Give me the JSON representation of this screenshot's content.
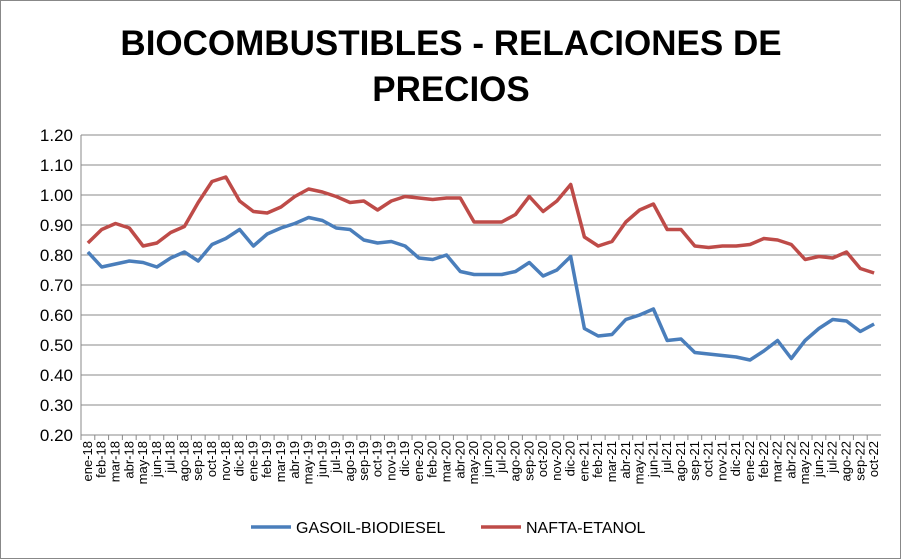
{
  "chart_data": {
    "type": "line",
    "title": "BIOCOMBUSTIBLES - RELACIONES DE PRECIOS",
    "title_lines": [
      "BIOCOMBUSTIBLES - RELACIONES DE",
      "PRECIOS"
    ],
    "xlabel": "",
    "ylabel": "",
    "ylim": [
      0.2,
      1.2
    ],
    "yticks": [
      "0.20",
      "0.30",
      "0.40",
      "0.50",
      "0.60",
      "0.70",
      "0.80",
      "0.90",
      "1.00",
      "1.10",
      "1.20"
    ],
    "grid": true,
    "legend": "bottom",
    "categories": [
      "ene-18",
      "feb-18",
      "mar-18",
      "abr-18",
      "may-18",
      "jun-18",
      "jul-18",
      "ago-18",
      "sep-18",
      "oct-18",
      "nov-18",
      "dic-18",
      "ene-19",
      "feb-19",
      "mar-19",
      "abr-19",
      "may-19",
      "jun-19",
      "jul-19",
      "ago-19",
      "sep-19",
      "oct-19",
      "nov-19",
      "dic-19",
      "ene-20",
      "feb-20",
      "mar-20",
      "abr-20",
      "may-20",
      "jun-20",
      "jul-20",
      "ago-20",
      "sep-20",
      "oct-20",
      "nov-20",
      "dic-20",
      "ene-21",
      "feb-21",
      "mar-21",
      "abr-21",
      "may-21",
      "jun-21",
      "jul-21",
      "ago-21",
      "sep-21",
      "oct-21",
      "nov-21",
      "dic-21",
      "ene-22",
      "feb-22",
      "mar-22",
      "abr-22",
      "may-22",
      "jun-22",
      "jul-22",
      "ago-22",
      "sep-22",
      "oct-22"
    ],
    "series": [
      {
        "name": "GASOIL-BIODIESEL",
        "color": "#4a7ebb",
        "values": [
          0.81,
          0.76,
          0.77,
          0.78,
          0.775,
          0.76,
          0.79,
          0.81,
          0.78,
          0.835,
          0.855,
          0.885,
          0.83,
          0.87,
          0.89,
          0.905,
          0.925,
          0.915,
          0.89,
          0.885,
          0.85,
          0.84,
          0.845,
          0.83,
          0.79,
          0.785,
          0.8,
          0.745,
          0.735,
          0.735,
          0.735,
          0.745,
          0.775,
          0.73,
          0.75,
          0.795,
          0.555,
          0.53,
          0.535,
          0.585,
          0.6,
          0.62,
          0.515,
          0.52,
          0.475,
          0.47,
          0.465,
          0.46,
          0.45,
          0.48,
          0.515,
          0.455,
          0.515,
          0.555,
          0.585,
          0.58,
          0.545,
          0.57
        ]
      },
      {
        "name": "NAFTA-ETANOL",
        "color": "#be4b48",
        "values": [
          0.84,
          0.885,
          0.905,
          0.89,
          0.83,
          0.84,
          0.875,
          0.895,
          0.975,
          1.045,
          1.06,
          0.98,
          0.945,
          0.94,
          0.96,
          0.995,
          1.02,
          1.01,
          0.995,
          0.975,
          0.98,
          0.95,
          0.98,
          0.995,
          0.99,
          0.985,
          0.99,
          0.99,
          0.91,
          0.91,
          0.91,
          0.935,
          0.995,
          0.945,
          0.98,
          1.035,
          0.86,
          0.83,
          0.845,
          0.91,
          0.95,
          0.97,
          0.885,
          0.885,
          0.83,
          0.825,
          0.83,
          0.83,
          0.835,
          0.855,
          0.85,
          0.835,
          0.785,
          0.795,
          0.79,
          0.81,
          0.755,
          0.74
        ]
      }
    ]
  }
}
